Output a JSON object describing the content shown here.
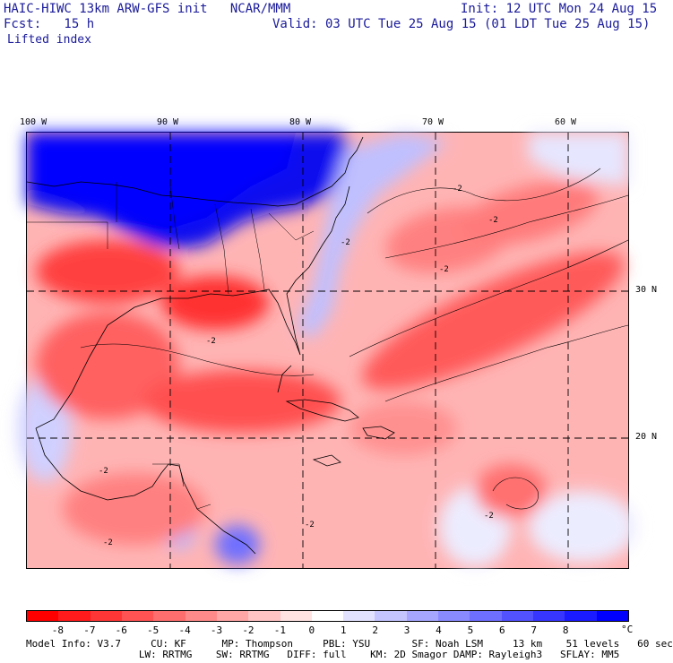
{
  "header": {
    "title": "HAIC-HIWC 13km ARW-GFS init   NCAR/MMM",
    "init": "Init: 12 UTC Mon 24 Aug 15",
    "fcst": "Fcst:   15 h",
    "valid": "Valid: 03 UTC Tue 25 Aug 15 (01 LDT Tue 25 Aug 15)",
    "field": "Lifted index"
  },
  "map": {
    "lon_labels": [
      "100 W",
      "90 W",
      "80 W",
      "70 W",
      "60 W"
    ],
    "lat_labels": [
      "30 N",
      "20 N"
    ],
    "contour_label": "-2"
  },
  "colorbar": {
    "ticks": [
      "-8",
      "-7",
      "-6",
      "-5",
      "-4",
      "-3",
      "-2",
      "-1",
      "0",
      "1",
      "2",
      "3",
      "4",
      "5",
      "6",
      "7",
      "8"
    ],
    "unit": "°C",
    "colors": [
      "#ff0000",
      "#ff1b1b",
      "#ff3636",
      "#ff5252",
      "#ff6e6e",
      "#ff8a8a",
      "#ffa6a6",
      "#ffc4c4",
      "#ffe2e2",
      "#ffffff",
      "#e2e2ff",
      "#c4c4ff",
      "#a6a6ff",
      "#8a8aff",
      "#6e6eff",
      "#5252ff",
      "#3636ff",
      "#1b1bff",
      "#0000ff"
    ]
  },
  "footer": {
    "line1": "Model Info: V3.7     CU: KF      MP: Thompson     PBL: YSU       SF: Noah LSM     13 km    51 levels   60 sec",
    "line2": "                   LW: RRTMG    SW: RRTMG   DIFF: full    KM: 2D Smagor DAMP: Rayleigh3   SFLAY: MM5"
  }
}
